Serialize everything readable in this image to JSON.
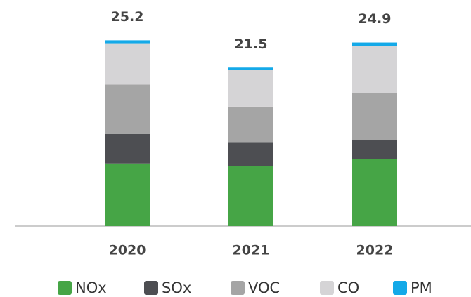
{
  "chart_data": {
    "type": "stacked_bar",
    "categories": [
      "2020",
      "2021",
      "2022"
    ],
    "series": [
      {
        "name": "NOx",
        "color": "#46a546",
        "values": [
          8.5,
          8.1,
          9.1
        ]
      },
      {
        "name": "SOx",
        "color": "#4d4e52",
        "values": [
          4.0,
          3.3,
          2.6
        ]
      },
      {
        "name": "VOC",
        "color": "#a5a5a5",
        "values": [
          6.7,
          4.8,
          6.3
        ]
      },
      {
        "name": "CO",
        "color": "#d5d4d6",
        "values": [
          5.6,
          5.0,
          6.4
        ]
      },
      {
        "name": "PM",
        "color": "#14a9e8",
        "values": [
          0.4,
          0.3,
          0.5
        ]
      }
    ],
    "totals": [
      25.2,
      21.5,
      24.9
    ],
    "ylim": [
      0,
      30
    ]
  }
}
